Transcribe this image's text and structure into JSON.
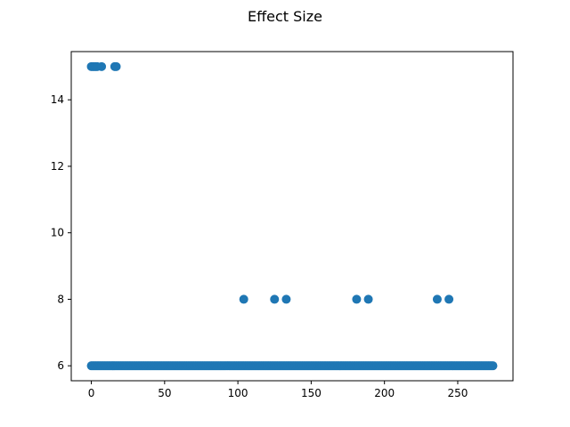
{
  "chart_data": {
    "type": "scatter",
    "title": "Effect Size",
    "xlabel": "",
    "ylabel": "",
    "xlim": [
      -13.7,
      287.7
    ],
    "ylim": [
      5.55,
      15.45
    ],
    "xticks": [
      0,
      50,
      100,
      150,
      200,
      250
    ],
    "yticks": [
      6,
      8,
      10,
      12,
      14
    ],
    "grid": false,
    "point_color": "#1f77b4",
    "baseline": {
      "y": 6,
      "x_start": 0,
      "x_end": 274,
      "step": 1
    },
    "series": [
      {
        "x": [
          0,
          1,
          2,
          3,
          4,
          7,
          16,
          17,
          104,
          125,
          133,
          181,
          189,
          236,
          244
        ],
        "y": [
          15,
          15,
          15,
          15,
          15,
          15,
          15,
          15,
          8,
          8,
          8,
          8,
          8,
          8,
          8
        ]
      }
    ]
  }
}
